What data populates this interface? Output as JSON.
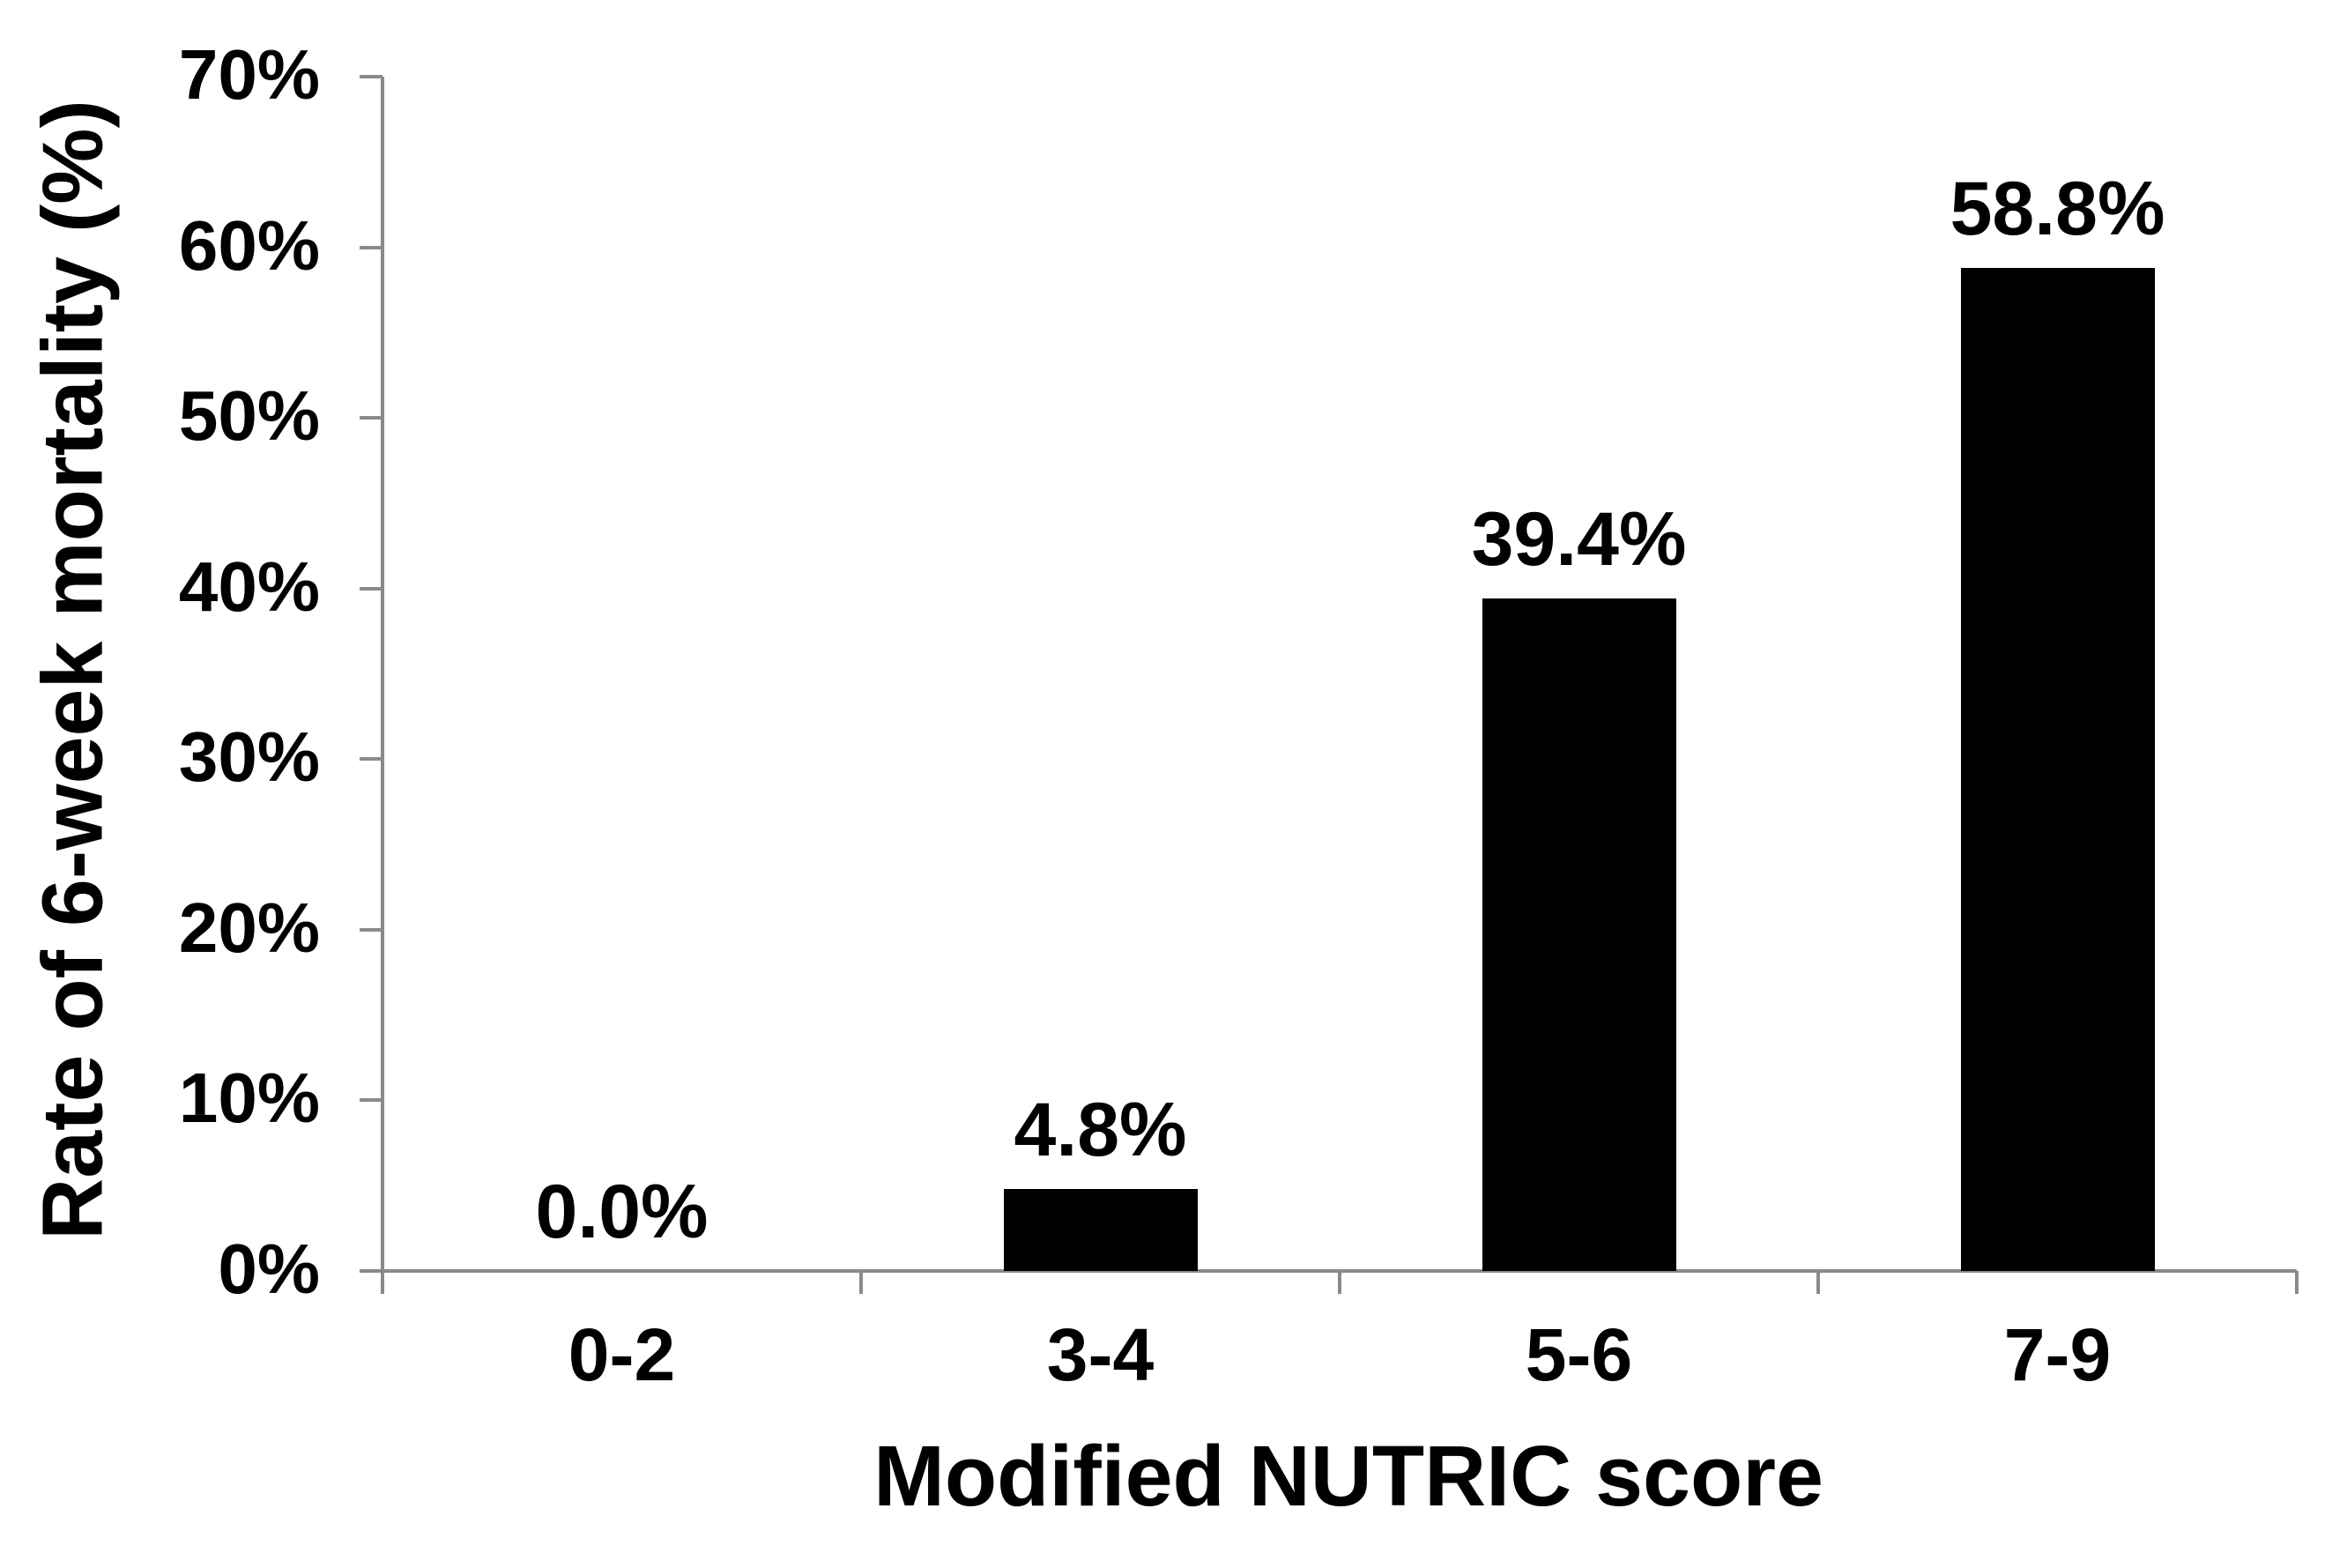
{
  "chart_data": {
    "type": "bar",
    "categories": [
      "0-2",
      "3-4",
      "5-6",
      "7-9"
    ],
    "values": [
      0.0,
      4.8,
      39.4,
      58.8
    ],
    "bar_value_labels": [
      "0.0%",
      "4.8%",
      "39.4%",
      "58.8%"
    ],
    "xlabel": "Modified NUTRIC score",
    "ylabel": "Rate of 6-week mortality (%)",
    "ylim": [
      0,
      70
    ],
    "ytick_step": 10,
    "ytick_labels": [
      "0%",
      "10%",
      "20%",
      "30%",
      "40%",
      "50%",
      "60%",
      "70%"
    ],
    "grid": "off",
    "legend": "none",
    "bar_color": "#000000",
    "axis_color": "#8a8a8a",
    "text_color": "#000000",
    "background_color": "#ffffff"
  }
}
